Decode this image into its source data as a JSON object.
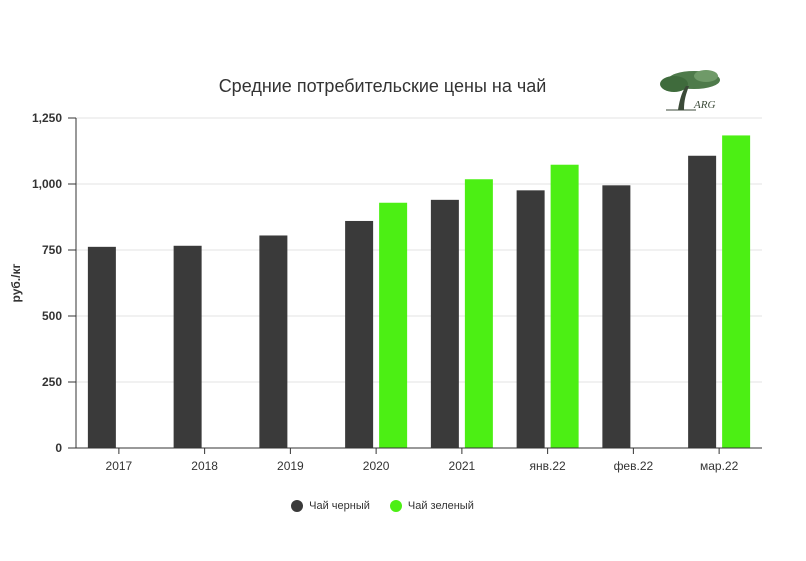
{
  "chart_data": {
    "type": "bar",
    "title": "Средние потребительские цены на чай",
    "xlabel": "",
    "ylabel": "руб./кг",
    "ylim": [
      0,
      1250
    ],
    "yticks": [
      0,
      250,
      500,
      750,
      1000,
      1250
    ],
    "ytick_labels": [
      "0",
      "250",
      "500",
      "750",
      "1,000",
      "1,250"
    ],
    "grid": true,
    "legend_position": "bottom",
    "categories": [
      "2017",
      "2018",
      "2019",
      "2020",
      "2021",
      "янв.22",
      "фев.22",
      "мар.22"
    ],
    "series": [
      {
        "name": "Чай черный",
        "color": "#3a3a3a",
        "values": [
          762,
          766,
          805,
          860,
          940,
          976,
          995,
          1107
        ]
      },
      {
        "name": "Чай зеленый",
        "color": "#4cef14",
        "values": [
          null,
          null,
          null,
          929,
          1018,
          1073,
          null,
          1184
        ]
      }
    ]
  },
  "logo": {
    "text": "ARG",
    "icon": "tree-logo-icon"
  }
}
